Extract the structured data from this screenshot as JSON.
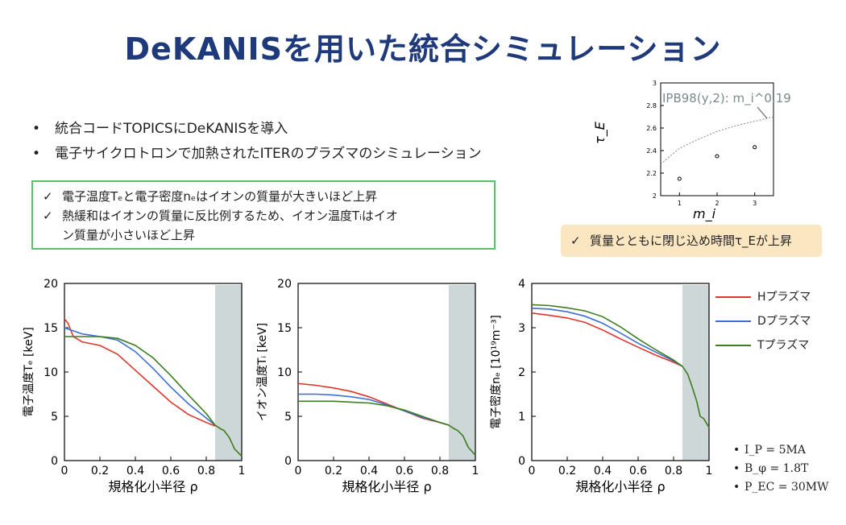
{
  "title": "DeKANISを用いた統合シミュレーション",
  "bullets": [
    "統合コードTOPICSにDeKANISを導入",
    "電子サイクロトロンで加熱されたITERのプラズマのシミュレーション"
  ],
  "green_box": {
    "check": "✓",
    "line1": "電子温度Tₑと電子密度nₑはイオンの質量が大きいほど上昇",
    "line2a": "熱緩和はイオンの質量に反比例するため、イオン温度Tᵢはイオ",
    "line2b": "ン質量が小さいほど上昇"
  },
  "yellow_box": {
    "check": "✓",
    "text": "質量とともに閉じ込め時間τ_Eが上昇"
  },
  "params": [
    "I_P = 5MA",
    "B_φ = 1.8T",
    "P_EC = 30MW"
  ],
  "legend": [
    {
      "label": "Hプラズマ",
      "color": "#e0352b"
    },
    {
      "label": "Dプラズマ",
      "color": "#3b6fd4"
    },
    {
      "label": "Tプラズマ",
      "color": "#3e7d1f"
    }
  ],
  "chart_data": [
    {
      "type": "scatter",
      "id": "tauE",
      "ylabel": "τ_E",
      "xlabel": "m_i",
      "annotation": "IPB98(y,2): m_i^0.19",
      "xlim": [
        0.5,
        3.5
      ],
      "ylim": [
        2,
        3
      ],
      "xticks": [
        1,
        2,
        3
      ],
      "yticks": [
        2,
        2.2,
        2.4,
        2.6,
        2.8,
        3
      ],
      "x": [
        1,
        2,
        3
      ],
      "y": [
        2.15,
        2.35,
        2.43
      ],
      "fit_curve": {
        "x": [
          0.5,
          1,
          1.5,
          2,
          2.5,
          3,
          3.5
        ],
        "y": [
          2.28,
          2.42,
          2.5,
          2.57,
          2.62,
          2.66,
          2.7
        ]
      }
    },
    {
      "type": "line",
      "id": "Te",
      "xlabel": "規格化小半径 ρ",
      "ylabel": "電子温度Tₑ [keV]",
      "xlim": [
        0,
        1
      ],
      "ylim": [
        0,
        20
      ],
      "xticks": [
        0,
        0.2,
        0.4,
        0.6,
        0.8,
        1
      ],
      "yticks": [
        0,
        5,
        10,
        15,
        20
      ],
      "shade": [
        0.85,
        1
      ],
      "series": [
        {
          "name": "Hプラズマ",
          "x": [
            0,
            0.02,
            0.05,
            0.1,
            0.2,
            0.3,
            0.4,
            0.5,
            0.6,
            0.7,
            0.8,
            0.85
          ],
          "y": [
            16,
            15.5,
            14.0,
            13.4,
            13.0,
            12.0,
            10.2,
            8.4,
            6.6,
            5.2,
            4.3,
            3.9
          ]
        },
        {
          "name": "Dプラズマ",
          "x": [
            0,
            0.1,
            0.2,
            0.3,
            0.4,
            0.5,
            0.6,
            0.7,
            0.8,
            0.85
          ],
          "y": [
            15.0,
            14.3,
            14.0,
            13.6,
            12.3,
            10.4,
            8.3,
            6.4,
            4.8,
            4.0
          ]
        },
        {
          "name": "Tプラズマ",
          "x": [
            0,
            0.1,
            0.2,
            0.3,
            0.4,
            0.5,
            0.6,
            0.7,
            0.8,
            0.85,
            0.88,
            0.9,
            0.93,
            0.96,
            1.0
          ],
          "y": [
            14.0,
            14.0,
            14.0,
            13.8,
            13.0,
            11.6,
            9.6,
            7.4,
            5.3,
            4.0,
            3.6,
            3.4,
            2.6,
            1.3,
            0.5
          ]
        }
      ]
    },
    {
      "type": "line",
      "id": "Ti",
      "xlabel": "規格化小半径 ρ",
      "ylabel": "イオン温度Tᵢ [keV]",
      "xlim": [
        0,
        1
      ],
      "ylim": [
        0,
        20
      ],
      "xticks": [
        0,
        0.2,
        0.4,
        0.6,
        0.8,
        1
      ],
      "yticks": [
        0,
        5,
        10,
        15,
        20
      ],
      "shade": [
        0.85,
        1
      ],
      "series": [
        {
          "name": "Hプラズマ",
          "x": [
            0,
            0.1,
            0.2,
            0.3,
            0.4,
            0.5,
            0.6,
            0.7,
            0.8,
            0.85
          ],
          "y": [
            8.7,
            8.5,
            8.2,
            7.8,
            7.2,
            6.4,
            5.6,
            4.8,
            4.3,
            4.0
          ]
        },
        {
          "name": "Dプラズマ",
          "x": [
            0,
            0.1,
            0.2,
            0.3,
            0.4,
            0.5,
            0.6,
            0.7,
            0.8,
            0.85
          ],
          "y": [
            7.5,
            7.5,
            7.4,
            7.2,
            6.9,
            6.3,
            5.6,
            4.9,
            4.3,
            4.0
          ]
        },
        {
          "name": "Tプラズマ",
          "x": [
            0,
            0.1,
            0.2,
            0.3,
            0.4,
            0.5,
            0.6,
            0.7,
            0.8,
            0.85,
            0.88,
            0.9,
            0.93,
            0.96,
            1.0
          ],
          "y": [
            6.7,
            6.7,
            6.7,
            6.6,
            6.5,
            6.2,
            5.7,
            5.0,
            4.3,
            4.0,
            3.6,
            3.4,
            2.8,
            1.5,
            0.6
          ]
        }
      ]
    },
    {
      "type": "line",
      "id": "ne",
      "xlabel": "規格化小半径 ρ",
      "ylabel": "電子密度nₑ [10¹⁹m⁻³]",
      "xlim": [
        0,
        1
      ],
      "ylim": [
        0,
        4
      ],
      "xticks": [
        0,
        0.2,
        0.4,
        0.6,
        0.8,
        1
      ],
      "yticks": [
        0,
        1,
        2,
        3,
        4
      ],
      "shade": [
        0.85,
        1
      ],
      "series": [
        {
          "name": "Hプラズマ",
          "x": [
            0,
            0.1,
            0.2,
            0.3,
            0.4,
            0.5,
            0.6,
            0.7,
            0.8,
            0.85
          ],
          "y": [
            3.33,
            3.28,
            3.22,
            3.12,
            2.95,
            2.75,
            2.56,
            2.38,
            2.22,
            2.13
          ]
        },
        {
          "name": "Dプラズマ",
          "x": [
            0,
            0.1,
            0.2,
            0.3,
            0.4,
            0.5,
            0.6,
            0.7,
            0.8,
            0.85
          ],
          "y": [
            3.44,
            3.42,
            3.36,
            3.26,
            3.1,
            2.88,
            2.65,
            2.45,
            2.25,
            2.13
          ]
        },
        {
          "name": "Tプラズマ",
          "x": [
            0,
            0.1,
            0.2,
            0.3,
            0.4,
            0.5,
            0.6,
            0.7,
            0.8,
            0.85,
            0.88,
            0.9,
            0.93,
            0.95,
            0.97,
            1.0
          ],
          "y": [
            3.52,
            3.5,
            3.45,
            3.38,
            3.25,
            3.02,
            2.75,
            2.5,
            2.27,
            2.13,
            1.95,
            1.72,
            1.35,
            1.0,
            0.95,
            0.75
          ]
        }
      ]
    }
  ]
}
